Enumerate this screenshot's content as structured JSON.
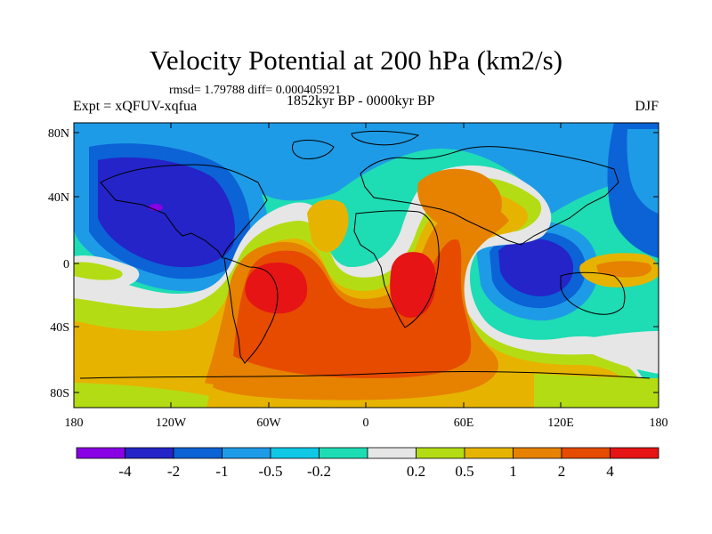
{
  "title": "Velocity Potential at 200 hPa (km2/s)",
  "stats_line": "rmsd= 1.79788 diff= 0.000405921",
  "left_label": "Expt = xQFUV-xqfua",
  "center_label": "1852kyr BP - 0000kyr BP",
  "right_label": "DJF",
  "y_ticks": [
    "80N",
    "40N",
    "0",
    "40S",
    "80S"
  ],
  "x_ticks": [
    "180",
    "120W",
    "60W",
    "0",
    "60E",
    "120E",
    "180"
  ],
  "colorbar": {
    "colors": [
      "#8a00e6",
      "#2424c8",
      "#0b63d6",
      "#1e9be6",
      "#10c8e6",
      "#1edcb4",
      "#e6e6e6",
      "#b4dc14",
      "#e6b400",
      "#e68200",
      "#e64b00",
      "#e61414"
    ],
    "labels": [
      "-4",
      "-2",
      "-1",
      "-0.5",
      "-0.2",
      "0.2",
      "0.5",
      "1",
      "2",
      "4"
    ]
  }
}
